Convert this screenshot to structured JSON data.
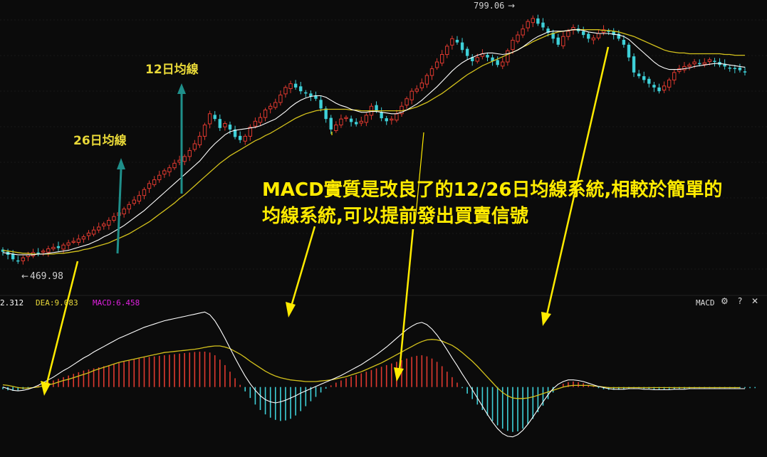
{
  "colors": {
    "background": "#0b0b0b",
    "up": "#e0392f",
    "down": "#3ed0d8",
    "ma12": "#ffffff",
    "ma26": "#d4c21c",
    "annotation": "#ffeb00",
    "arrow_teal": "#1f8f8a",
    "macd_label": "#e020e0",
    "dea_label": "#e8d838",
    "dif_label": "#ffffff"
  },
  "labels": {
    "ma12": "12日均線",
    "ma26": "26日均線",
    "high": "799.06",
    "low": "469.98",
    "annotation_line1": "MACD實質是改良了的12/26日均線系統,相較於簡單的",
    "annotation_line2": "均線系統,可以提前發出買賣信號"
  },
  "indicator": {
    "dif_text": "2.312",
    "dea_text": "DEA:9.083",
    "macd_text": "MACD:6.458",
    "name": "MACD"
  },
  "controls": {
    "settings_icon": "gear-icon",
    "help": "?",
    "close": "✕"
  },
  "chart_data": [
    {
      "type": "candlestick",
      "title": "",
      "price_range": [
        440,
        810
      ],
      "high": 799.06,
      "low": 469.98,
      "close_series": [
        482,
        478,
        472,
        470,
        474,
        478,
        481,
        480,
        483,
        486,
        488,
        487,
        491,
        494,
        496,
        499,
        502,
        507,
        511,
        515,
        519,
        524,
        529,
        534,
        539,
        545,
        551,
        557,
        565,
        573,
        578,
        584,
        590,
        594,
        600,
        604,
        609,
        617,
        626,
        636,
        651,
        666,
        659,
        647,
        653,
        645,
        635,
        631,
        636,
        648,
        656,
        661,
        671,
        676,
        681,
        691,
        701,
        706,
        701,
        696,
        693,
        689,
        686,
        673,
        659,
        645,
        651,
        659,
        661,
        655,
        652,
        656,
        664,
        676,
        670,
        660,
        656,
        659,
        666,
        676,
        686,
        696,
        699,
        707,
        717,
        726,
        735,
        745,
        756,
        766,
        761,
        751,
        743,
        736,
        741,
        746,
        741,
        736,
        731,
        735,
        750,
        764,
        771,
        779,
        789,
        793,
        786,
        781,
        774,
        766,
        758,
        769,
        776,
        781,
        776,
        771,
        766,
        767,
        773,
        778,
        776,
        771,
        766,
        758,
        741,
        721,
        716,
        711,
        706,
        701,
        696,
        703,
        711,
        721,
        726,
        729,
        731,
        735,
        732,
        734,
        738,
        735,
        731,
        729,
        727,
        726,
        724,
        721
      ],
      "series": [
        {
          "name": "12日均線",
          "values": [
            481,
            480,
            479,
            478,
            478,
            478,
            478,
            479,
            479,
            480,
            481,
            482,
            483,
            484,
            486,
            488,
            490,
            492,
            495,
            498,
            502,
            505,
            509,
            513,
            517,
            522,
            527,
            532,
            537,
            543,
            549,
            555,
            561,
            567,
            573,
            579,
            585,
            591,
            597,
            603,
            611,
            619,
            626,
            632,
            638,
            642,
            644,
            645,
            646,
            647,
            648,
            650,
            653,
            656,
            659,
            664,
            669,
            675,
            680,
            684,
            687,
            689,
            690,
            690,
            688,
            684,
            680,
            677,
            675,
            672,
            670,
            668,
            668,
            669,
            669,
            668,
            667,
            666,
            666,
            668,
            671,
            675,
            679,
            684,
            690,
            696,
            702,
            709,
            716,
            723,
            729,
            734,
            738,
            741,
            744,
            746,
            747,
            747,
            746,
            745,
            746,
            748,
            751,
            755,
            760,
            765,
            769,
            772,
            775,
            776,
            776,
            776,
            777,
            778,
            778,
            777,
            775,
            774,
            773,
            773,
            773,
            772,
            771,
            769,
            765,
            759,
            753,
            747,
            741,
            735,
            730,
            727,
            725,
            725,
            725,
            726,
            727,
            729,
            730,
            731,
            732,
            733,
            733,
            732,
            731,
            730,
            729,
            728
          ]
        },
        {
          "name": "26日均線",
          "values": [
            484,
            483,
            482,
            481,
            480,
            480,
            479,
            479,
            479,
            479,
            479,
            480,
            480,
            481,
            482,
            483,
            485,
            486,
            488,
            490,
            492,
            494,
            497,
            500,
            503,
            506,
            510,
            514,
            518,
            522,
            527,
            532,
            537,
            542,
            547,
            553,
            558,
            564,
            570,
            576,
            582,
            588,
            594,
            600,
            605,
            610,
            614,
            618,
            622,
            626,
            630,
            633,
            637,
            640,
            644,
            648,
            652,
            656,
            660,
            663,
            666,
            668,
            670,
            671,
            672,
            672,
            672,
            672,
            672,
            671,
            671,
            670,
            670,
            670,
            670,
            670,
            670,
            670,
            670,
            670,
            671,
            673,
            675,
            678,
            681,
            685,
            689,
            693,
            698,
            703,
            708,
            713,
            718,
            722,
            726,
            730,
            733,
            736,
            739,
            742,
            745,
            748,
            751,
            755,
            758,
            762,
            765,
            768,
            771,
            773,
            775,
            776,
            777,
            778,
            778,
            778,
            778,
            778,
            778,
            777,
            777,
            776,
            775,
            773,
            771,
            769,
            766,
            763,
            760,
            757,
            754,
            751,
            749,
            748,
            747,
            747,
            746,
            746,
            746,
            746,
            746,
            746,
            746,
            745,
            745,
            744,
            744,
            744
          ]
        }
      ]
    },
    {
      "type": "bar",
      "title": "MACD",
      "ylim": [
        -12,
        14
      ],
      "values": [
        -0.4,
        -0.6,
        -0.7,
        -0.6,
        -0.4,
        -0.2,
        0.0,
        0.3,
        0.6,
        0.9,
        1.2,
        1.5,
        1.8,
        2.1,
        2.4,
        2.7,
        3.0,
        3.2,
        3.4,
        3.6,
        3.8,
        4.0,
        4.2,
        4.4,
        4.6,
        4.8,
        5.0,
        5.2,
        5.4,
        5.5,
        5.6,
        5.7,
        5.8,
        5.9,
        6.0,
        6.1,
        6.2,
        6.3,
        6.4,
        6.45,
        6.46,
        6.3,
        5.8,
        5.0,
        4.0,
        2.8,
        1.6,
        0.4,
        -0.8,
        -2.0,
        -3.2,
        -4.2,
        -5.0,
        -5.6,
        -6.0,
        -6.2,
        -6.1,
        -5.8,
        -5.2,
        -4.4,
        -3.5,
        -2.6,
        -1.8,
        -1.0,
        -0.3,
        0.3,
        0.8,
        1.2,
        1.6,
        1.9,
        2.2,
        2.5,
        2.8,
        3.1,
        3.4,
        3.7,
        4.0,
        4.3,
        4.6,
        4.9,
        5.2,
        5.5,
        5.7,
        5.8,
        5.6,
        5.2,
        4.6,
        3.8,
        2.8,
        1.8,
        0.8,
        -0.2,
        -1.2,
        -2.2,
        -3.2,
        -4.2,
        -5.2,
        -6.2,
        -7.0,
        -7.6,
        -8.0,
        -8.2,
        -8.1,
        -7.6,
        -6.8,
        -5.8,
        -4.6,
        -3.4,
        -2.2,
        -1.0,
        0.0,
        0.6,
        0.9,
        1.0,
        0.9,
        0.7,
        0.4,
        0.1,
        -0.2,
        -0.4,
        -0.5,
        -0.5,
        -0.5,
        -0.4,
        -0.3,
        -0.2,
        -0.2,
        -0.3,
        -0.3,
        -0.4,
        -0.4,
        -0.4,
        -0.4,
        -0.4,
        -0.3,
        -0.3,
        -0.3,
        -0.2,
        -0.2,
        -0.2,
        -0.2,
        -0.2,
        -0.2,
        -0.2,
        -0.2,
        -0.2,
        -0.2,
        -0.2,
        -0.2,
        -0.2
      ],
      "series": [
        {
          "name": "DIF",
          "values": [
            0.0,
            -0.3,
            -0.6,
            -0.7,
            -0.6,
            -0.4,
            -0.1,
            0.3,
            0.8,
            1.3,
            1.8,
            2.4,
            3.0,
            3.5,
            4.1,
            4.7,
            5.3,
            5.8,
            6.4,
            6.9,
            7.4,
            7.9,
            8.4,
            8.9,
            9.3,
            9.7,
            10.1,
            10.5,
            10.9,
            11.2,
            11.5,
            11.8,
            12.1,
            12.3,
            12.5,
            12.7,
            12.9,
            13.1,
            13.3,
            13.5,
            13.7,
            13.2,
            12.1,
            10.6,
            8.9,
            7.1,
            5.3,
            3.6,
            2.0,
            0.6,
            -0.6,
            -1.6,
            -2.3,
            -2.7,
            -2.9,
            -2.7,
            -2.4,
            -2.0,
            -1.6,
            -1.1,
            -0.7,
            -0.3,
            0.1,
            0.5,
            0.9,
            1.3,
            1.7,
            2.1,
            2.6,
            3.1,
            3.6,
            4.1,
            4.7,
            5.3,
            5.9,
            6.6,
            7.3,
            8.1,
            8.9,
            9.7,
            10.5,
            11.1,
            11.6,
            11.8,
            11.4,
            10.6,
            9.5,
            8.2,
            6.8,
            5.3,
            3.9,
            2.4,
            1.0,
            -0.5,
            -2.0,
            -3.5,
            -5.0,
            -6.4,
            -7.6,
            -8.5,
            -9.0,
            -9.1,
            -8.7,
            -7.9,
            -6.8,
            -5.5,
            -4.1,
            -2.7,
            -1.4,
            -0.3,
            0.5,
            1.0,
            1.3,
            1.3,
            1.2,
            1.0,
            0.7,
            0.4,
            0.1,
            -0.1,
            -0.3,
            -0.4,
            -0.4,
            -0.4,
            -0.3,
            -0.3,
            -0.3,
            -0.4,
            -0.4,
            -0.5,
            -0.5,
            -0.5,
            -0.5,
            -0.4,
            -0.4,
            -0.4,
            -0.3,
            -0.3,
            -0.3,
            -0.3,
            -0.3,
            -0.3,
            -0.3,
            -0.3,
            -0.3,
            -0.3,
            -0.3,
            -0.3
          ]
        },
        {
          "name": "DEA",
          "values": [
            0.4,
            0.3,
            0.1,
            -0.1,
            -0.2,
            -0.2,
            -0.1,
            0.0,
            0.2,
            0.4,
            0.6,
            0.9,
            1.2,
            1.4,
            1.7,
            2.0,
            2.3,
            2.6,
            3.0,
            3.3,
            3.6,
            3.9,
            4.2,
            4.5,
            4.7,
            4.9,
            5.1,
            5.3,
            5.5,
            5.7,
            5.9,
            6.1,
            6.3,
            6.4,
            6.5,
            6.6,
            6.7,
            6.8,
            6.9,
            7.05,
            7.24,
            7.4,
            7.5,
            7.5,
            7.3,
            7.0,
            6.5,
            6.0,
            5.4,
            4.7,
            4.1,
            3.5,
            2.9,
            2.4,
            2.0,
            1.7,
            1.5,
            1.3,
            1.2,
            1.1,
            1.0,
            1.0,
            1.0,
            1.1,
            1.2,
            1.3,
            1.5,
            1.7,
            1.9,
            2.2,
            2.5,
            2.8,
            3.2,
            3.6,
            4.0,
            4.4,
            4.9,
            5.4,
            5.9,
            6.4,
            6.9,
            7.4,
            7.9,
            8.3,
            8.6,
            8.7,
            8.6,
            8.4,
            8.0,
            7.6,
            7.0,
            6.3,
            5.5,
            4.7,
            3.8,
            2.8,
            1.8,
            0.8,
            -0.2,
            -1.0,
            -1.6,
            -2.0,
            -2.1,
            -2.1,
            -2.0,
            -1.8,
            -1.5,
            -1.2,
            -0.9,
            -0.6,
            -0.3,
            0.0,
            0.2,
            0.3,
            0.3,
            0.3,
            0.3,
            0.2,
            0.1,
            0.0,
            -0.1,
            -0.1,
            -0.1,
            -0.1,
            -0.1,
            -0.1,
            -0.1,
            -0.1,
            -0.1,
            -0.1,
            -0.1,
            -0.1,
            -0.1,
            -0.1,
            -0.1,
            -0.1,
            -0.1,
            -0.1,
            -0.1,
            -0.1,
            -0.1,
            -0.1,
            -0.1,
            -0.1,
            -0.1,
            -0.1,
            -0.1
          ]
        }
      ]
    }
  ]
}
